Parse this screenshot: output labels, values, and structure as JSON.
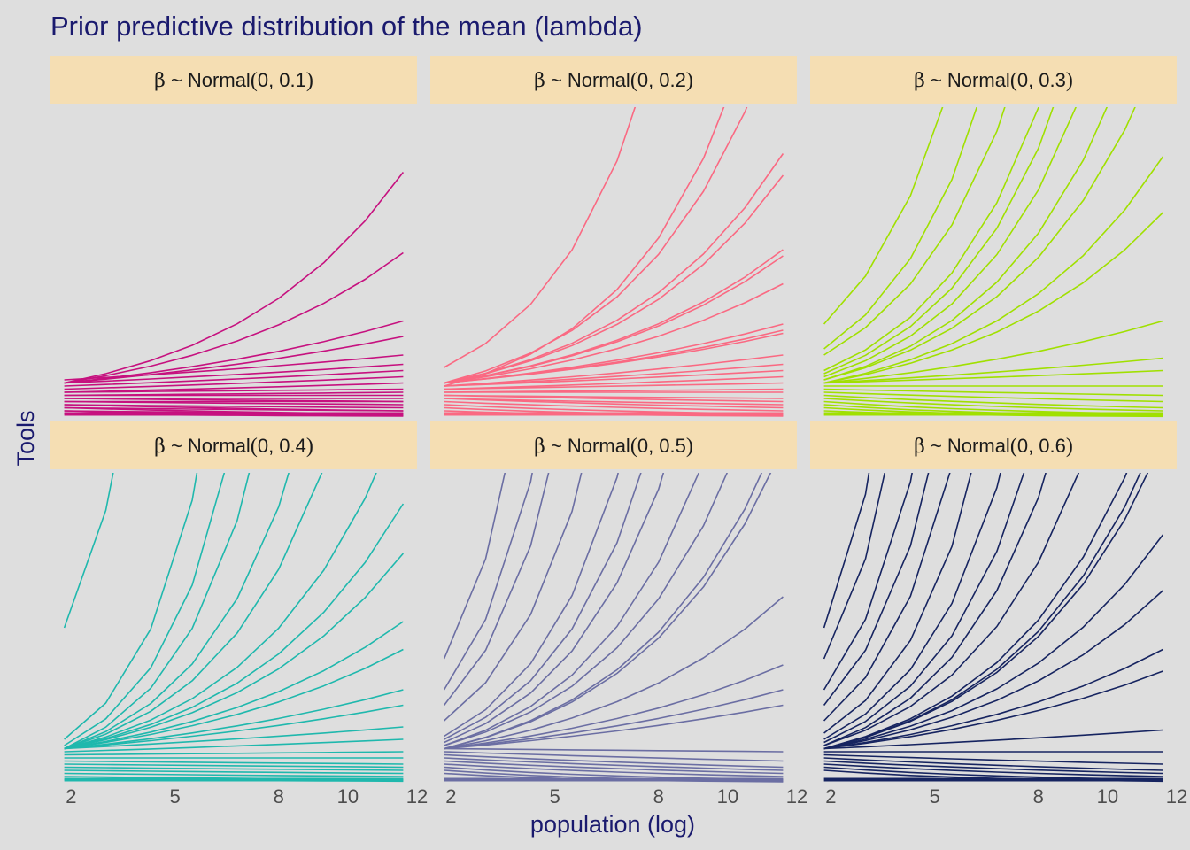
{
  "chart_data": {
    "type": "line",
    "title": "Prior predictive distribution of the mean (lambda)",
    "xlabel": "population (log)",
    "ylabel": "Tools",
    "x_ticks": [
      2,
      5,
      8,
      10,
      12
    ],
    "xlim": [
      1.4,
      12
    ],
    "x_values": [
      1.8,
      3.0,
      4.3,
      5.5,
      6.8,
      8.0,
      9.3,
      10.5,
      11.6
    ],
    "ylim": [
      0,
      100
    ],
    "grid": false,
    "legend": "none",
    "facets": [
      {
        "panel": "β ~ Normal(0, 0.1)",
        "strip_parts": [
          "β",
          " ~ Normal",
          "(",
          "0, 0.1",
          ")"
        ],
        "color": "#c6117f",
        "series": [
          {
            "start": 11,
            "end": 79
          },
          {
            "start": 11,
            "end": 53
          },
          {
            "start": 11,
            "end": 31
          },
          {
            "start": 11,
            "end": 26
          },
          {
            "start": 12,
            "end": 20
          },
          {
            "start": 11,
            "end": 17
          },
          {
            "start": 10,
            "end": 15
          },
          {
            "start": 9,
            "end": 13
          },
          {
            "start": 8,
            "end": 11
          },
          {
            "start": 8,
            "end": 9
          },
          {
            "start": 7,
            "end": 8
          },
          {
            "start": 7,
            "end": 7
          },
          {
            "start": 6,
            "end": 6
          },
          {
            "start": 6,
            "end": 5
          },
          {
            "start": 5,
            "end": 5
          },
          {
            "start": 5,
            "end": 4
          },
          {
            "start": 4,
            "end": 3
          },
          {
            "start": 4,
            "end": 2
          },
          {
            "start": 3,
            "end": 2
          },
          {
            "start": 3,
            "end": 1
          },
          {
            "start": 2,
            "end": 1
          },
          {
            "start": 2,
            "end": 0.5
          },
          {
            "start": 1,
            "end": 0.5
          },
          {
            "start": 1,
            "end": 0.3
          }
        ]
      },
      {
        "panel": "β ~ Normal(0, 0.2)",
        "strip_parts": [
          "β",
          " ~ Normal",
          "(",
          "0, 0.2",
          ")"
        ],
        "color": "#fa6982",
        "series": [
          {
            "start": 16,
            "end": 400
          },
          {
            "start": 10,
            "end": 160
          },
          {
            "start": 11,
            "end": 130
          },
          {
            "start": 11,
            "end": 85
          },
          {
            "start": 11,
            "end": 78
          },
          {
            "start": 11,
            "end": 54
          },
          {
            "start": 11,
            "end": 52
          },
          {
            "start": 11,
            "end": 43
          },
          {
            "start": 11,
            "end": 30
          },
          {
            "start": 11,
            "end": 28
          },
          {
            "start": 11,
            "end": 27
          },
          {
            "start": 10,
            "end": 20
          },
          {
            "start": 10,
            "end": 17
          },
          {
            "start": 10,
            "end": 15
          },
          {
            "start": 9,
            "end": 13
          },
          {
            "start": 9,
            "end": 11
          },
          {
            "start": 8,
            "end": 9
          },
          {
            "start": 8,
            "end": 8
          },
          {
            "start": 7,
            "end": 6
          },
          {
            "start": 7,
            "end": 5
          },
          {
            "start": 6,
            "end": 4
          },
          {
            "start": 6,
            "end": 3
          },
          {
            "start": 5,
            "end": 2
          },
          {
            "start": 4,
            "end": 1
          },
          {
            "start": 3,
            "end": 0.5
          },
          {
            "start": 2,
            "end": 0.3
          }
        ]
      },
      {
        "panel": "β ~ Normal(0, 0.3)",
        "strip_parts": [
          "β",
          " ~ Normal",
          "(",
          "0, 0.3",
          ")"
        ],
        "color": "#a0e000",
        "series": [
          {
            "start": 30,
            "end": 900
          },
          {
            "start": 22,
            "end": 600
          },
          {
            "start": 20,
            "end": 400
          },
          {
            "start": 15,
            "end": 300
          },
          {
            "start": 14,
            "end": 250
          },
          {
            "start": 13,
            "end": 200
          },
          {
            "start": 12,
            "end": 150
          },
          {
            "start": 12,
            "end": 120
          },
          {
            "start": 11,
            "end": 84
          },
          {
            "start": 11,
            "end": 66
          },
          {
            "start": 11,
            "end": 31
          },
          {
            "start": 11,
            "end": 19
          },
          {
            "start": 11,
            "end": 15
          },
          {
            "start": 10,
            "end": 10
          },
          {
            "start": 9,
            "end": 7
          },
          {
            "start": 8,
            "end": 5
          },
          {
            "start": 7,
            "end": 3
          },
          {
            "start": 6,
            "end": 2
          },
          {
            "start": 5,
            "end": 1
          },
          {
            "start": 4,
            "end": 0.5
          },
          {
            "start": 3,
            "end": 0.3
          },
          {
            "start": 2,
            "end": 0.2
          }
        ]
      },
      {
        "panel": "β ~ Normal(0, 0.4)",
        "strip_parts": [
          "β",
          " ~ Normal",
          "(",
          "0, 0.4",
          ")"
        ],
        "color": "#1fb8ad",
        "series": [
          {
            "start": 50,
            "end": 5000
          },
          {
            "start": 14,
            "end": 2000
          },
          {
            "start": 12,
            "end": 1000
          },
          {
            "start": 11,
            "end": 600
          },
          {
            "start": 11,
            "end": 300
          },
          {
            "start": 11,
            "end": 200
          },
          {
            "start": 11,
            "end": 120
          },
          {
            "start": 11,
            "end": 90
          },
          {
            "start": 11,
            "end": 74
          },
          {
            "start": 11,
            "end": 52
          },
          {
            "start": 11,
            "end": 43
          },
          {
            "start": 11,
            "end": 30
          },
          {
            "start": 11,
            "end": 25
          },
          {
            "start": 11,
            "end": 18
          },
          {
            "start": 10,
            "end": 14
          },
          {
            "start": 9,
            "end": 10
          },
          {
            "start": 8,
            "end": 8
          },
          {
            "start": 7,
            "end": 6
          },
          {
            "start": 6,
            "end": 5
          },
          {
            "start": 5,
            "end": 4
          },
          {
            "start": 4,
            "end": 3
          },
          {
            "start": 3,
            "end": 2
          },
          {
            "start": 2,
            "end": 1
          },
          {
            "start": 1,
            "end": 0.5
          }
        ]
      },
      {
        "panel": "β ~ Normal(0, 0.5)",
        "strip_parts": [
          "β",
          " ~ Normal",
          "(",
          "0, 0.5",
          ")"
        ],
        "color": "#6b6ea3",
        "series": [
          {
            "start": 40,
            "end": 5000
          },
          {
            "start": 30,
            "end": 3000
          },
          {
            "start": 25,
            "end": 2000
          },
          {
            "start": 20,
            "end": 1000
          },
          {
            "start": 15,
            "end": 600
          },
          {
            "start": 14,
            "end": 400
          },
          {
            "start": 13,
            "end": 300
          },
          {
            "start": 12,
            "end": 200
          },
          {
            "start": 12,
            "end": 150
          },
          {
            "start": 11,
            "end": 115
          },
          {
            "start": 11,
            "end": 108
          },
          {
            "start": 11,
            "end": 60
          },
          {
            "start": 11,
            "end": 38
          },
          {
            "start": 11,
            "end": 30
          },
          {
            "start": 11,
            "end": 25
          },
          {
            "start": 11,
            "end": 10
          },
          {
            "start": 10,
            "end": 7
          },
          {
            "start": 9,
            "end": 5
          },
          {
            "start": 8,
            "end": 4
          },
          {
            "start": 7,
            "end": 3
          },
          {
            "start": 6,
            "end": 2
          },
          {
            "start": 5,
            "end": 1
          },
          {
            "start": 4,
            "end": 0.5
          },
          {
            "start": 3,
            "end": 0.3
          }
        ]
      },
      {
        "panel": "β ~ Normal(0, 0.6)",
        "strip_parts": [
          "β",
          " ~ Normal",
          "(",
          "0, 0.6",
          ")"
        ],
        "color": "#162460",
        "series": [
          {
            "start": 50,
            "end": 8000
          },
          {
            "start": 40,
            "end": 5000
          },
          {
            "start": 30,
            "end": 3000
          },
          {
            "start": 25,
            "end": 2000
          },
          {
            "start": 20,
            "end": 1500
          },
          {
            "start": 16,
            "end": 1000
          },
          {
            "start": 14,
            "end": 600
          },
          {
            "start": 13,
            "end": 400
          },
          {
            "start": 12,
            "end": 300
          },
          {
            "start": 12,
            "end": 200
          },
          {
            "start": 11,
            "end": 130
          },
          {
            "start": 11,
            "end": 116
          },
          {
            "start": 11,
            "end": 110
          },
          {
            "start": 11,
            "end": 80
          },
          {
            "start": 11,
            "end": 62
          },
          {
            "start": 11,
            "end": 43
          },
          {
            "start": 11,
            "end": 36
          },
          {
            "start": 11,
            "end": 17
          },
          {
            "start": 10,
            "end": 10
          },
          {
            "start": 9,
            "end": 6
          },
          {
            "start": 8,
            "end": 4
          },
          {
            "start": 7,
            "end": 3
          },
          {
            "start": 6,
            "end": 2
          },
          {
            "start": 5,
            "end": 1
          },
          {
            "start": 4,
            "end": 0.5
          }
        ]
      }
    ]
  }
}
